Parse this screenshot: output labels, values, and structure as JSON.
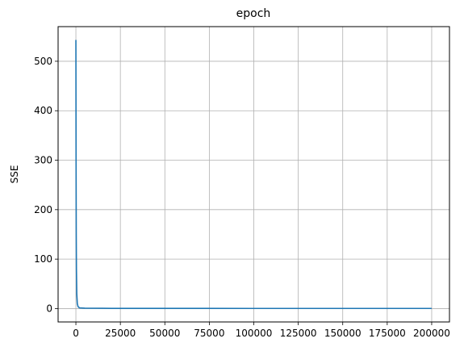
{
  "chart_data": {
    "type": "line",
    "title": "epoch",
    "xlabel": "",
    "ylabel": "SSE",
    "grid": true,
    "xlim": [
      -10000,
      210000
    ],
    "ylim": [
      -27,
      570
    ],
    "x_ticks": [
      0,
      25000,
      50000,
      75000,
      100000,
      125000,
      150000,
      175000,
      200000
    ],
    "y_ticks": [
      0,
      100,
      200,
      300,
      400,
      500
    ],
    "series": [
      {
        "color": "#1f77b4",
        "x": [
          0,
          50,
          100,
          200,
          300,
          500,
          800,
          1200,
          2000,
          5000,
          20000,
          50000,
          100000,
          150000,
          200000
        ],
        "y": [
          543,
          420,
          300,
          150,
          80,
          30,
          10,
          4,
          1.5,
          0.8,
          0.5,
          0.4,
          0.3,
          0.3,
          0.3
        ]
      }
    ]
  }
}
